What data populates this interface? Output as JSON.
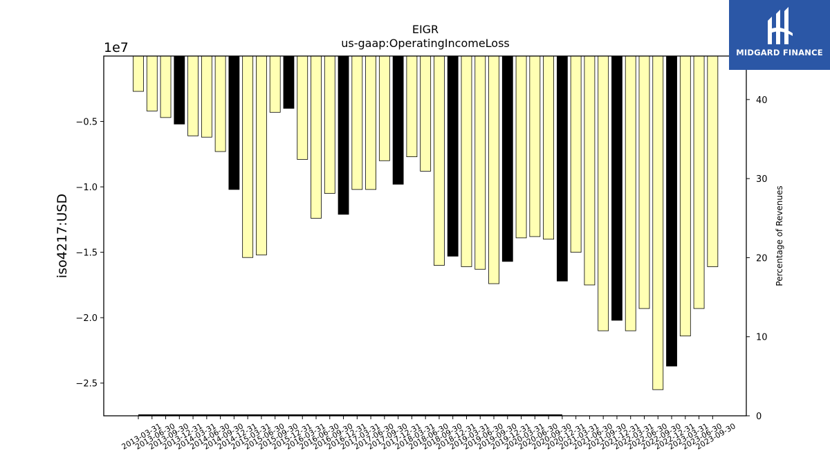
{
  "chart_data": {
    "type": "bar",
    "title": "EIGR",
    "subtitle": "us-gaap:OperatingIncomeLoss",
    "ylabel": "iso4217:USD",
    "y_offset_label": "1e7",
    "y2label": "Percentage of Revenues",
    "ylim": [
      -27500000,
      0
    ],
    "y2lim": [
      0,
      45.5
    ],
    "yticks": [
      -0.5,
      -1.0,
      -1.5,
      -2.0,
      -2.5
    ],
    "y2ticks": [
      0,
      10,
      20,
      30,
      40
    ],
    "grid": false,
    "categories": [
      "2013-03-31",
      "2013-06-30",
      "2013-09-30",
      "2013-12-31",
      "2014-03-31",
      "2014-06-30",
      "2014-09-30",
      "2014-12-31",
      "2015-03-31",
      "2015-06-30",
      "2015-09-30",
      "2015-12-31",
      "2016-03-31",
      "2016-06-30",
      "2016-09-30",
      "2016-12-31",
      "2017-03-31",
      "2017-06-30",
      "2017-09-30",
      "2017-12-31",
      "2018-03-31",
      "2018-06-30",
      "2018-09-30",
      "2018-12-31",
      "2019-03-31",
      "2019-06-30",
      "2019-09-30",
      "2019-12-31",
      "2020-03-31",
      "2020-06-30",
      "2020-09-30",
      "2020-12-31",
      "2021-03-31",
      "2021-06-30",
      "2021-09-30",
      "2021-12-31",
      "2022-03-31",
      "2022-06-30",
      "2022-09-30",
      "2022-12-31",
      "2023-03-31",
      "2023-06-30",
      "2023-09-30"
    ],
    "values": [
      -2700000,
      -4200000,
      -4700000,
      -5200000,
      -6100000,
      -6200000,
      -7300000,
      -10200000,
      -15400000,
      -15200000,
      -4300000,
      -4000000,
      -7900000,
      -12400000,
      -10500000,
      -12100000,
      -10200000,
      -10200000,
      -8000000,
      -9800000,
      -7700000,
      -8800000,
      -16000000,
      -15300000,
      -16100000,
      -16300000,
      -17400000,
      -15700000,
      -13900000,
      -13800000,
      -14000000,
      -17200000,
      -15000000,
      -17500000,
      -21000000,
      -20200000,
      -21000000,
      -19300000,
      -25500000,
      -23700000,
      -21400000,
      -19300000,
      -16100000
    ],
    "bar_kinds": [
      "q",
      "q",
      "q",
      "a",
      "q",
      "q",
      "q",
      "a",
      "q",
      "q",
      "q",
      "a",
      "q",
      "q",
      "q",
      "a",
      "q",
      "q",
      "q",
      "a",
      "q",
      "q",
      "q",
      "a",
      "q",
      "q",
      "q",
      "a",
      "q",
      "q",
      "q",
      "a",
      "q",
      "q",
      "q",
      "a",
      "q",
      "q",
      "q",
      "a",
      "q",
      "q",
      "q"
    ],
    "colors": {
      "quarter": "#ffffb3",
      "annual": "#000000",
      "edge": "#000000",
      "logo_bg": "#2b57a6"
    }
  },
  "logo": {
    "text": "MIDGARD FINANCE",
    "icon": "midgard-logo-icon"
  }
}
